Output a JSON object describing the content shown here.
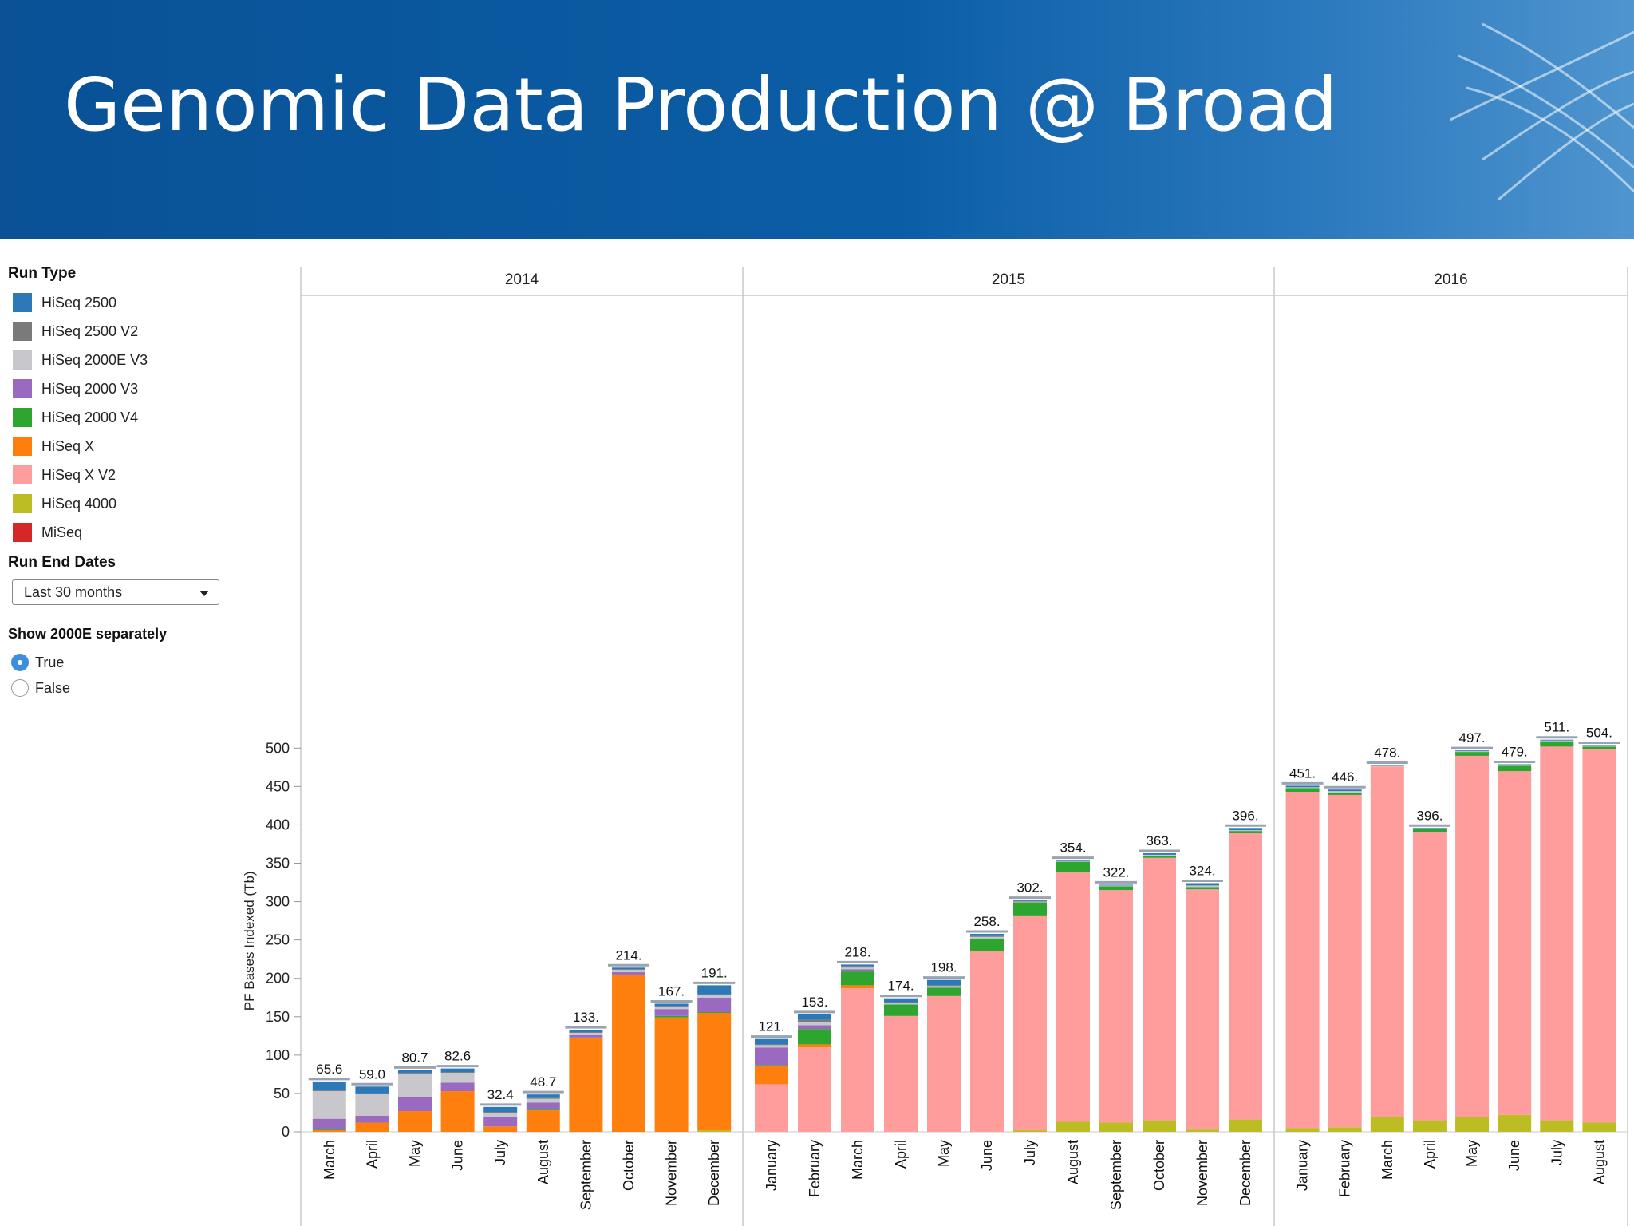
{
  "header": {
    "title": "Genomic Data Production @ Broad"
  },
  "sidebar": {
    "run_type_title": "Run Type",
    "legend": [
      {
        "label": "HiSeq 2500",
        "color": "#2d79b8"
      },
      {
        "label": "HiSeq 2500 V2",
        "color": "#7a7a7a"
      },
      {
        "label": "HiSeq 2000E V3",
        "color": "#c8c8cc"
      },
      {
        "label": "HiSeq 2000 V3",
        "color": "#9a69c0"
      },
      {
        "label": "HiSeq 2000 V4",
        "color": "#2ea52e"
      },
      {
        "label": "HiSeq X",
        "color": "#ff7f0e"
      },
      {
        "label": "HiSeq X V2",
        "color": "#ff9c9c"
      },
      {
        "label": "HiSeq 4000",
        "color": "#bcbd22"
      },
      {
        "label": "MiSeq",
        "color": "#d62728"
      }
    ],
    "run_end_dates_title": "Run End Dates",
    "run_end_dates_value": "Last 30 months",
    "show_2000e_title": "Show 2000E separately",
    "radio_true": "True",
    "radio_false": "False",
    "radio_selected": "True"
  },
  "chart_data": {
    "type": "bar",
    "stacked": true,
    "ylabel": "PF Bases Indexed (Tb)",
    "ylim": [
      0,
      560
    ],
    "yticks": [
      0,
      50,
      100,
      150,
      200,
      250,
      300,
      350,
      400,
      450,
      500
    ],
    "grid": false,
    "legend": "left",
    "series_order": [
      "HiSeq 4000",
      "HiSeq X V2",
      "HiSeq X",
      "HiSeq 2000 V4",
      "HiSeq 2000 V3",
      "HiSeq 2000E V3",
      "HiSeq 2500 V2",
      "HiSeq 2500"
    ],
    "groups": [
      {
        "year": "2014",
        "bars": [
          {
            "month": "March",
            "total_label": "65.6",
            "segments": {
              "HiSeq X": 2,
              "HiSeq 2000 V4": 1,
              "HiSeq 2000 V3": 14,
              "HiSeq 2000E V3": 36,
              "HiSeq 2500 V2": 1,
              "HiSeq 2500": 11.6
            }
          },
          {
            "month": "April",
            "total_label": "59.0",
            "segments": {
              "HiSeq X": 12,
              "HiSeq 2000 V3": 9,
              "HiSeq 2000E V3": 28,
              "HiSeq 2500 V2": 1,
              "HiSeq 2500": 9
            }
          },
          {
            "month": "May",
            "total_label": "80.7",
            "segments": {
              "HiSeq X": 27,
              "HiSeq 2000 V3": 18,
              "HiSeq 2000E V3": 31,
              "HiSeq 2500 V2": 1,
              "HiSeq 2500": 3.7
            }
          },
          {
            "month": "June",
            "total_label": "82.6",
            "segments": {
              "HiSeq X": 53,
              "HiSeq 2000 V3": 11,
              "HiSeq 2000E V3": 13,
              "HiSeq 2500 V2": 1,
              "HiSeq 2500": 4.6
            }
          },
          {
            "month": "July",
            "total_label": "32.4",
            "segments": {
              "HiSeq X": 7,
              "HiSeq 2000 V3": 13,
              "HiSeq 2000E V3": 5,
              "HiSeq 2500 V2": 1,
              "HiSeq 2500": 6.4
            }
          },
          {
            "month": "August",
            "total_label": "48.7",
            "segments": {
              "HiSeq X": 28,
              "HiSeq 2000 V4": 1,
              "HiSeq 2000 V3": 9,
              "HiSeq 2000E V3": 5,
              "HiSeq 2500 V2": 1,
              "HiSeq 2500": 4.7
            }
          },
          {
            "month": "September",
            "total_label": "133.",
            "segments": {
              "HiSeq X": 122,
              "HiSeq 2000 V4": 1,
              "HiSeq 2000 V3": 3,
              "HiSeq 2000E V3": 3,
              "HiSeq 2500 V2": 1,
              "HiSeq 2500": 3
            }
          },
          {
            "month": "October",
            "total_label": "214.",
            "segments": {
              "HiSeq X": 204,
              "HiSeq 2000 V4": 1,
              "HiSeq 2000 V3": 3,
              "HiSeq 2000E V3": 3,
              "HiSeq 2500 V2": 1,
              "HiSeq 2500": 2
            }
          },
          {
            "month": "November",
            "total_label": "167.",
            "segments": {
              "HiSeq X": 149,
              "HiSeq 2000 V4": 2,
              "HiSeq 2000 V3": 9,
              "HiSeq 2000E V3": 3,
              "HiSeq 2500 V2": 1,
              "HiSeq 2500": 3
            }
          },
          {
            "month": "December",
            "total_label": "191.",
            "segments": {
              "HiSeq 4000": 2,
              "HiSeq X": 153,
              "HiSeq 2000 V4": 1,
              "HiSeq 2000 V3": 19,
              "HiSeq 2000E V3": 3,
              "HiSeq 2500 V2": 1,
              "HiSeq 2500": 12
            }
          }
        ]
      },
      {
        "year": "2015",
        "bars": [
          {
            "month": "January",
            "total_label": "121.",
            "segments": {
              "HiSeq X V2": 62,
              "HiSeq X": 24,
              "HiSeq 2000 V4": 1,
              "HiSeq 2000 V3": 23,
              "HiSeq 2000E V3": 3,
              "HiSeq 2500 V2": 1,
              "HiSeq 2500": 7
            }
          },
          {
            "month": "February",
            "total_label": "153.",
            "segments": {
              "HiSeq X V2": 110,
              "HiSeq X": 4,
              "HiSeq 2000 V4": 20,
              "HiSeq 2000 V3": 5,
              "HiSeq 2000E V3": 4,
              "HiSeq 2500 V2": 3,
              "HiSeq 2500": 7
            }
          },
          {
            "month": "March",
            "total_label": "218.",
            "segments": {
              "HiSeq X V2": 187,
              "HiSeq X": 4,
              "HiSeq 2000 V4": 18,
              "HiSeq 2000 V3": 3,
              "HiSeq 2000E V3": 2,
              "HiSeq 2500 V2": 2,
              "HiSeq 2500": 2
            }
          },
          {
            "month": "April",
            "total_label": "174.",
            "segments": {
              "HiSeq X V2": 151,
              "HiSeq 2000 V4": 15,
              "HiSeq 2000E V3": 2,
              "HiSeq 2500 V2": 1,
              "HiSeq 2500": 5
            }
          },
          {
            "month": "May",
            "total_label": "198.",
            "segments": {
              "HiSeq X V2": 177,
              "HiSeq 2000 V4": 11,
              "HiSeq 2000E V3": 2,
              "HiSeq 2500 V2": 1,
              "HiSeq 2500": 7
            }
          },
          {
            "month": "June",
            "total_label": "258.",
            "segments": {
              "HiSeq X V2": 235,
              "HiSeq 2000 V4": 17,
              "HiSeq 2000E V3": 2,
              "HiSeq 2500 V2": 1,
              "HiSeq 2500": 3
            }
          },
          {
            "month": "July",
            "total_label": "302.",
            "segments": {
              "HiSeq 4000": 2,
              "HiSeq X V2": 280,
              "HiSeq 2000 V4": 17,
              "HiSeq 2000E V3": 1,
              "HiSeq 2500 V2": 1,
              "HiSeq 2500": 1
            }
          },
          {
            "month": "August",
            "total_label": "354.",
            "segments": {
              "HiSeq 4000": 13,
              "HiSeq X V2": 325,
              "HiSeq 2000 V4": 14,
              "HiSeq 2000E V3": 1,
              "HiSeq 2500": 1
            }
          },
          {
            "month": "September",
            "total_label": "322.",
            "segments": {
              "HiSeq 4000": 12,
              "HiSeq X V2": 303,
              "HiSeq 2000 V4": 5,
              "HiSeq 2000E V3": 1,
              "HiSeq 2500": 1
            }
          },
          {
            "month": "October",
            "total_label": "363.",
            "segments": {
              "HiSeq 4000": 15,
              "HiSeq X V2": 342,
              "HiSeq 2000 V4": 3,
              "HiSeq 2000E V3": 1,
              "HiSeq 2500": 2
            }
          },
          {
            "month": "November",
            "total_label": "324.",
            "segments": {
              "HiSeq 4000": 3,
              "HiSeq X V2": 313,
              "HiSeq 2000 V4": 3,
              "HiSeq 2000E V3": 2,
              "HiSeq 2500": 3
            }
          },
          {
            "month": "December",
            "total_label": "396.",
            "segments": {
              "HiSeq 4000": 16,
              "HiSeq X V2": 373,
              "HiSeq 2000 V4": 3,
              "HiSeq 2000E V3": 1,
              "HiSeq 2500": 3
            }
          }
        ]
      },
      {
        "year": "2016",
        "bars": [
          {
            "month": "January",
            "total_label": "451.",
            "segments": {
              "HiSeq 4000": 5,
              "HiSeq X V2": 438,
              "HiSeq 2000 V4": 5,
              "HiSeq 2000E V3": 1,
              "HiSeq 2500": 2
            }
          },
          {
            "month": "February",
            "total_label": "446.",
            "segments": {
              "HiSeq 4000": 6,
              "HiSeq X V2": 433,
              "HiSeq 2000 V4": 3,
              "HiSeq 2000E V3": 2,
              "HiSeq 2500": 2
            }
          },
          {
            "month": "March",
            "total_label": "478.",
            "segments": {
              "HiSeq 4000": 19,
              "HiSeq X V2": 457,
              "HiSeq 2000E V3": 1,
              "HiSeq 2500": 1
            }
          },
          {
            "month": "April",
            "total_label": "396.",
            "segments": {
              "HiSeq 4000": 15,
              "HiSeq X V2": 376,
              "HiSeq 2000 V4": 4,
              "HiSeq 2500": 1
            }
          },
          {
            "month": "May",
            "total_label": "497.",
            "segments": {
              "HiSeq 4000": 19,
              "HiSeq X V2": 471,
              "HiSeq 2000 V4": 5,
              "HiSeq 2000E V3": 1,
              "HiSeq 2500": 1
            }
          },
          {
            "month": "June",
            "total_label": "479.",
            "segments": {
              "HiSeq 4000": 22,
              "HiSeq X V2": 448,
              "HiSeq 2000 V4": 7,
              "HiSeq 2000E V3": 1,
              "HiSeq 2500": 1
            }
          },
          {
            "month": "July",
            "total_label": "511.",
            "segments": {
              "HiSeq 4000": 15,
              "HiSeq X V2": 487,
              "HiSeq 2000 V4": 7,
              "HiSeq 2000E V3": 1,
              "HiSeq 2500": 1
            }
          },
          {
            "month": "August",
            "total_label": "504.",
            "segments": {
              "HiSeq 4000": 12,
              "HiSeq X V2": 487,
              "HiSeq 2000 V4": 3,
              "HiSeq 2000E V3": 1,
              "HiSeq 2500": 1
            }
          }
        ]
      }
    ]
  }
}
